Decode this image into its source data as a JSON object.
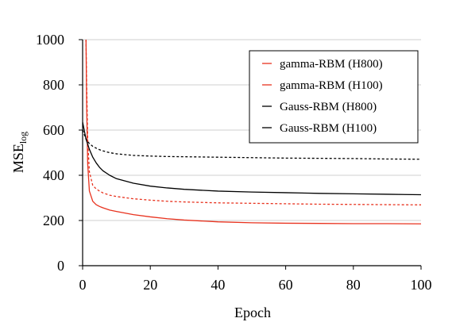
{
  "chart_data": {
    "type": "line",
    "xlabel": "Epoch",
    "ylabel": "MSE",
    "ylabel_subscript": "log",
    "xlim": [
      0,
      100
    ],
    "ylim": [
      0,
      1000
    ],
    "xticks": [
      0,
      20,
      40,
      60,
      80,
      100
    ],
    "yticks": [
      0,
      200,
      400,
      600,
      800,
      1000
    ],
    "grid": "horizontal",
    "legend_position": "top-right",
    "series": [
      {
        "name": "gamma-RBM (H800)",
        "color": "#e8321e",
        "dash": "solid",
        "x": [
          1,
          1.2,
          1.5,
          2,
          3,
          4,
          5,
          6,
          8,
          10,
          15,
          20,
          25,
          30,
          40,
          50,
          60,
          70,
          80,
          90,
          100
        ],
        "y": [
          1000,
          700,
          450,
          330,
          285,
          270,
          262,
          256,
          246,
          240,
          226,
          216,
          208,
          202,
          194,
          190,
          188,
          187,
          186,
          186,
          185
        ]
      },
      {
        "name": "gamma-RBM (H100)",
        "color": "#e8321e",
        "dash": "dashed",
        "x": [
          1,
          1.2,
          1.5,
          2,
          3,
          4,
          5,
          6,
          8,
          10,
          15,
          20,
          25,
          30,
          40,
          50,
          60,
          70,
          80,
          90,
          100
        ],
        "y": [
          1000,
          800,
          560,
          415,
          355,
          340,
          330,
          322,
          312,
          306,
          296,
          290,
          285,
          282,
          278,
          276,
          274,
          272,
          271,
          270,
          269
        ]
      },
      {
        "name": "Gauss-RBM (H800)",
        "color": "#000000",
        "dash": "solid",
        "x": [
          0,
          1,
          2,
          3,
          4,
          5,
          6,
          8,
          10,
          15,
          20,
          25,
          30,
          40,
          50,
          60,
          70,
          80,
          90,
          100
        ],
        "y": [
          635,
          560,
          515,
          480,
          455,
          435,
          420,
          400,
          385,
          365,
          352,
          344,
          338,
          330,
          326,
          323,
          320,
          318,
          316,
          314
        ]
      },
      {
        "name": "Gauss-RBM (H100)",
        "color": "#000000",
        "dash": "dashed",
        "x": [
          0,
          1,
          2,
          3,
          4,
          5,
          6,
          8,
          10,
          15,
          20,
          25,
          30,
          40,
          50,
          60,
          70,
          80,
          90,
          100
        ],
        "y": [
          600,
          560,
          540,
          528,
          520,
          513,
          508,
          500,
          495,
          488,
          485,
          483,
          482,
          480,
          478,
          476,
          475,
          474,
          472,
          471
        ]
      }
    ]
  }
}
